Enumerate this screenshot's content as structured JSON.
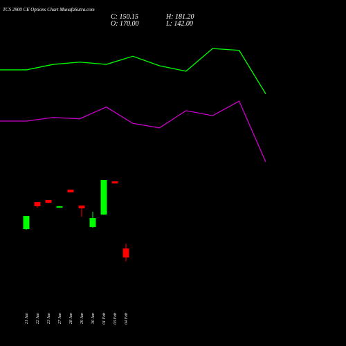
{
  "title": "TCS 2900 CE Options Chart MunafaSutra.com",
  "header": {
    "close": "C: 150.15",
    "high": "H: 181.20",
    "open": "O: 170.00",
    "low": "L: 142.00"
  },
  "chart_data": [
    {
      "type": "candlestick",
      "categories": [
        "21 Jan",
        "22 Jan",
        "23 Jan",
        "27 Jan",
        "28 Jan",
        "29 Jan",
        "30 Jan",
        "01 Feb",
        "03 Feb",
        "04 Feb"
      ],
      "open": [
        212.8,
        272.3,
        276.9,
        260,
        299.8,
        264.7,
        217.3,
        244.8,
        318,
        170
      ],
      "high": [
        241.8,
        272.3,
        277,
        263,
        299.8,
        264.7,
        251,
        321.2,
        318,
        181.2
      ],
      "low": [
        211,
        260,
        270,
        260,
        293.7,
        240,
        215.8,
        244,
        313.5,
        142
      ],
      "close": [
        241.8,
        263.2,
        270.8,
        263,
        293.7,
        258.6,
        237.2,
        321.2,
        313.5,
        150.15
      ],
      "up_color": "#00ff00",
      "down_color": "#ff0000",
      "ylim": [
        -45,
        718
      ]
    },
    {
      "type": "line",
      "categories": [
        null,
        null,
        null,
        null,
        null,
        null,
        null,
        null,
        null,
        null,
        null
      ],
      "series": [
        {
          "color": "#00ff00",
          "values": [
            564,
            564,
            576,
            581,
            576,
            594,
            573,
            561,
            611,
            607,
            511
          ]
        },
        {
          "color": "#cc00cc",
          "values": [
            451,
            451,
            459,
            456,
            482,
            446,
            436,
            474,
            463,
            495,
            361
          ]
        }
      ],
      "ylim": [
        -45,
        718
      ]
    }
  ]
}
